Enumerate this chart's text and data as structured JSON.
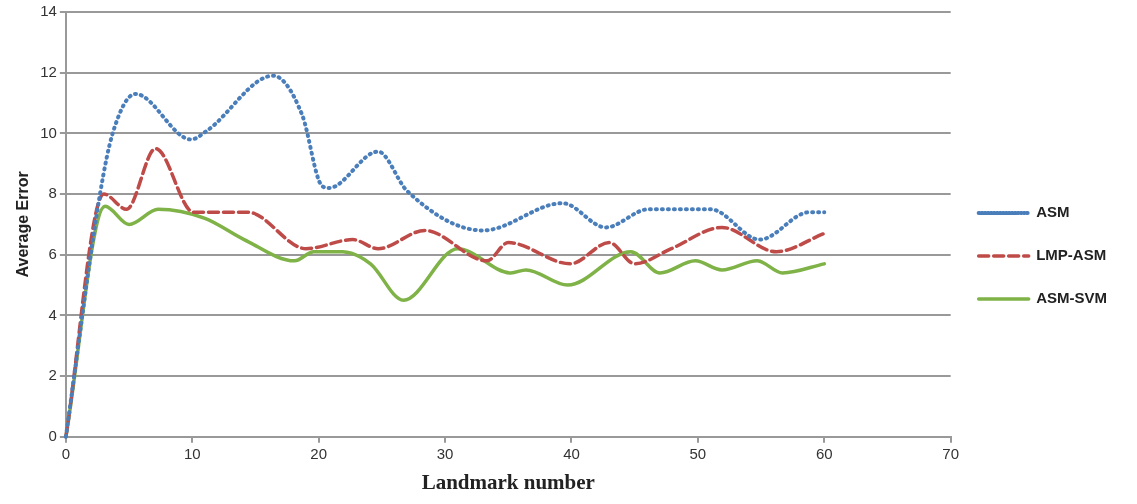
{
  "chart_data": {
    "type": "line",
    "xlabel": "Landmark number",
    "ylabel": "Average Error",
    "xlim": [
      0,
      70
    ],
    "xticks": [
      0,
      10,
      20,
      30,
      40,
      50,
      60,
      70
    ],
    "ylim": [
      0,
      14
    ],
    "yticks": [
      0,
      2,
      4,
      6,
      8,
      10,
      12,
      14
    ],
    "grid": "y",
    "legend": "right",
    "marker": "none",
    "series": [
      {
        "name": "ASM",
        "color": "#4a7ebb",
        "line_style": "dotted",
        "x": [
          0,
          2.7,
          3.7,
          5.5,
          9.9,
          11.2,
          16.4,
          18.7,
          20.2,
          20.8,
          24.7,
          27,
          33,
          39.3,
          42.7,
          46.1,
          51,
          54.9,
          58.8,
          60
        ],
        "values": [
          0,
          8.0,
          10.0,
          11.3,
          9.8,
          10.1,
          11.9,
          10.6,
          8.3,
          8.2,
          9.4,
          8.1,
          6.8,
          7.7,
          6.9,
          7.5,
          7.5,
          6.5,
          7.4,
          7.4
        ]
      },
      {
        "name": "LMP-ASM",
        "color": "#be4b48",
        "line_style": "dashed",
        "x": [
          0,
          3,
          4.8,
          7.1,
          10.1,
          14.4,
          19,
          22.7,
          24.7,
          28.4,
          33.3,
          35,
          39.9,
          43,
          45,
          47.9,
          51.9,
          56.2,
          60
        ],
        "values": [
          0,
          8.0,
          7.5,
          9.5,
          7.4,
          7.4,
          6.2,
          6.5,
          6.2,
          6.8,
          5.8,
          6.4,
          5.7,
          6.4,
          5.7,
          6.2,
          6.9,
          6.1,
          6.7
        ]
      },
      {
        "name": "ASM-SVM",
        "color": "#7fb247",
        "line_style": "solid",
        "x": [
          0,
          3.1,
          5,
          7.3,
          11,
          14.1,
          18.1,
          19.6,
          21.9,
          24.1,
          26.7,
          31,
          35.2,
          36.4,
          39.7,
          44.7,
          47,
          49.8,
          51.9,
          54.7,
          56.7,
          60
        ],
        "values": [
          0,
          7.6,
          7.0,
          7.5,
          7.2,
          6.5,
          5.8,
          6.1,
          6.1,
          5.7,
          4.5,
          6.2,
          5.4,
          5.5,
          5.0,
          6.1,
          5.4,
          5.8,
          5.5,
          5.8,
          5.4,
          5.7
        ]
      }
    ]
  }
}
